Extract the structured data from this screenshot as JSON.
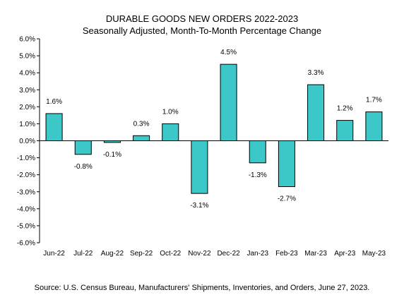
{
  "chart_data": {
    "type": "bar",
    "title": "DURABLE GOODS NEW ORDERS 2022-2023",
    "subtitle": "Seasonally Adjusted,  Month-To-Month Percentage Change",
    "categories": [
      "Jun-22",
      "Jul-22",
      "Aug-22",
      "Sep-22",
      "Oct-22",
      "Nov-22",
      "Dec-22",
      "Jan-23",
      "Feb-23",
      "Mar-23",
      "Apr-23",
      "May-23"
    ],
    "values": [
      1.6,
      -0.8,
      -0.1,
      0.3,
      1.0,
      -3.1,
      4.5,
      -1.3,
      -2.7,
      3.3,
      1.2,
      1.7
    ],
    "data_labels": [
      "1.6%",
      "-0.8%",
      "-0.1%",
      "0.3%",
      "1.0%",
      "-3.1%",
      "4.5%",
      "-1.3%",
      "-2.7%",
      "3.3%",
      "1.2%",
      "1.7%"
    ],
    "y_ticks": [
      "6.0%",
      "5.0%",
      "4.0%",
      "3.0%",
      "2.0%",
      "1.0%",
      "0.0%",
      "-1.0%",
      "-2.0%",
      "-3.0%",
      "-4.0%",
      "-5.0%",
      "-6.0%"
    ],
    "ylim": [
      -6,
      6
    ],
    "xlabel": "",
    "ylabel": "",
    "grid": false,
    "bar_color": "#3cc8c8",
    "bar_edge_color": "#000000"
  },
  "source": "Source: U.S. Census Bureau, Manufacturers' Shipments, Inventories, and Orders, June 27, 2023."
}
